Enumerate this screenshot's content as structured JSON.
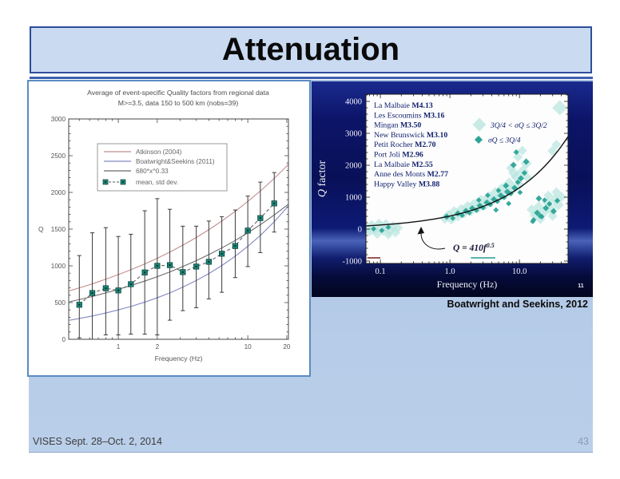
{
  "slide": {
    "title": "Attenuation",
    "footer_left": "VISES Sept. 28–Oct. 2, 2014",
    "page_number": "43",
    "caption": "Boatwright and Seekins, 2012",
    "colors": {
      "title_box_bg": "#c9daf1",
      "title_box_border": "#2e4d9b",
      "underline": "#3c5fae",
      "content_bg": "#b2c9e6",
      "navy_panel": "#0a1160",
      "teal_dark": "#2ba496",
      "teal_light": "#b9e5df"
    }
  },
  "chart_data": [
    {
      "type": "line",
      "title": "Average of event-specific Quality factors from regional data",
      "subtitle": "M>=3.5, data 150 to 500 km (nobs=39)",
      "xlabel": "Frequency (Hz)",
      "ylabel": "Q",
      "xscale": "log",
      "xlim": [
        0.414,
        20.6
      ],
      "ylim": [
        0,
        3000
      ],
      "yticks": [
        0,
        500,
        1000,
        1500,
        2000,
        2500,
        3000
      ],
      "xticks": [
        1,
        2,
        10,
        20
      ],
      "xminor": [
        0.5,
        0.6,
        0.7,
        0.8,
        0.9,
        3,
        4,
        5,
        6,
        7,
        8,
        9
      ],
      "legend_position": "upper-left-inside",
      "grid": false,
      "x": [
        0.42,
        0.5,
        0.63,
        0.8,
        1,
        1.25,
        1.6,
        2,
        2.5,
        3.15,
        4,
        5,
        6.3,
        8,
        10,
        12.5,
        16,
        20.6
      ],
      "series": [
        {
          "name": "Atkinson (2004)",
          "color": "#c28e8e",
          "y": [
            661,
            700,
            755,
            818,
            880,
            947,
            1026,
            1103,
            1187,
            1281,
            1386,
            1492,
            1610,
            1742,
            1877,
            2019,
            2190,
            2380
          ]
        },
        {
          "name": "Boatwright&Seekins (2011)",
          "color": "#8389c2",
          "y": [
            259,
            283,
            317,
            358,
            400,
            447,
            506,
            566,
            632,
            710,
            800,
            894,
            1004,
            1131,
            1265,
            1414,
            1600,
            1815
          ]
        },
        {
          "name": "680*x^0.33",
          "color": "#6b6b6b",
          "y": [
            511,
            541,
            583,
            632,
            680,
            732,
            793,
            852,
            917,
            990,
            1071,
            1153,
            1244,
            1346,
            1450,
            1560,
            1692,
            1839
          ]
        }
      ],
      "mean_series": {
        "name": "mean, std dev.",
        "color": "#1d8a7c",
        "x": [
          0.5,
          0.63,
          0.8,
          1,
          1.25,
          1.6,
          2,
          2.5,
          3.15,
          4,
          5,
          6.3,
          8,
          10,
          12.5,
          16
        ],
        "y": [
          470,
          630,
          695,
          665,
          750,
          910,
          1000,
          1010,
          915,
          990,
          1055,
          1165,
          1270,
          1480,
          1650,
          1850
        ],
        "err_low": [
          20,
          0,
          60,
          60,
          70,
          70,
          60,
          260,
          390,
          430,
          550,
          640,
          840,
          990,
          1180,
          1460
        ],
        "err_high": [
          1140,
          1450,
          1520,
          1400,
          1430,
          1750,
          1915,
          1770,
          1540,
          1540,
          1610,
          1670,
          1760,
          1950,
          2140,
          2270
        ]
      }
    },
    {
      "type": "scatter",
      "xlabel": "Frequency  (Hz)",
      "ylabel": "Q factor",
      "xscale": "log",
      "xlim": [
        0.062,
        50
      ],
      "ylim": [
        -1075,
        4225
      ],
      "yticks": [
        -1000,
        0,
        1000,
        2000,
        3000,
        4000
      ],
      "xticks": [
        0.1,
        1,
        10
      ],
      "xtick_labels": [
        "0.1",
        "1.0",
        "10.0"
      ],
      "grid": false,
      "slide_number": "11",
      "events": [
        {
          "name": "La Malbaie",
          "mag": "M4.13"
        },
        {
          "name": "Les Escoumins",
          "mag": "M3.16"
        },
        {
          "name": "Mingan",
          "mag": "M3.50"
        },
        {
          "name": "New Brunswick",
          "mag": "M3.10"
        },
        {
          "name": "Petit Rocher",
          "mag": "M2.70"
        },
        {
          "name": "Port Joli",
          "mag": "M2.96"
        },
        {
          "name": "La Malbaie",
          "mag": "M2.55"
        },
        {
          "name": "Anne des Monts",
          "mag": "M2.77"
        },
        {
          "name": "Happy Valley",
          "mag": "M3.88"
        }
      ],
      "legend_symbols": [
        {
          "label": "3Q/4 < σQ ≤ 3Q/2",
          "style": "light"
        },
        {
          "label": "σQ ≤ 3Q/4",
          "style": "dark"
        }
      ],
      "curve": {
        "label_base": "Q = 410f",
        "label_exp": "0.5",
        "coef": 410,
        "power": 0.5
      },
      "baseline_segments": [
        {
          "f1": 0.065,
          "f2": 0.1,
          "q": -900,
          "color": "#7a1f1f"
        },
        {
          "f1": 2.0,
          "f2": 4.5,
          "q": -900,
          "color": "#2a9a8e"
        }
      ],
      "series": [
        {
          "name": "3Q/4 < σQ ≤ 3Q/2",
          "color": "#b9e5df",
          "points": [
            [
              0.063,
              20,
              6
            ],
            [
              0.07,
              -70,
              6.5
            ],
            [
              0.075,
              110,
              7
            ],
            [
              0.082,
              -20,
              6
            ],
            [
              0.09,
              -140,
              6.5
            ],
            [
              0.1,
              60,
              7.5
            ],
            [
              0.11,
              -60,
              6
            ],
            [
              0.12,
              150,
              6.5
            ],
            [
              0.135,
              -30,
              7
            ],
            [
              0.15,
              90,
              6.5
            ],
            [
              0.165,
              -110,
              6
            ],
            [
              0.18,
              40,
              6
            ],
            [
              0.095,
              190,
              5.5
            ],
            [
              0.13,
              -180,
              5.5
            ],
            [
              0.85,
              330,
              6.5
            ],
            [
              0.95,
              430,
              7
            ],
            [
              1.05,
              290,
              6
            ],
            [
              1.15,
              530,
              7.5
            ],
            [
              1.3,
              410,
              6.5
            ],
            [
              1.45,
              610,
              7
            ],
            [
              1.6,
              490,
              6
            ],
            [
              1.8,
              690,
              7.5
            ],
            [
              2.0,
              570,
              6.5
            ],
            [
              2.2,
              770,
              7
            ],
            [
              2.5,
              650,
              6.5
            ],
            [
              2.8,
              890,
              7.5
            ],
            [
              3.2,
              750,
              6.5
            ],
            [
              3.6,
              1010,
              7
            ],
            [
              4.0,
              870,
              6.5
            ],
            [
              4.5,
              1130,
              7.5
            ],
            [
              5.0,
              970,
              6.5
            ],
            [
              5.6,
              1270,
              7
            ],
            [
              6.3,
              1090,
              6.5
            ],
            [
              7.1,
              1430,
              7.5
            ],
            [
              8.0,
              1230,
              6.5
            ],
            [
              9.0,
              1630,
              7
            ],
            [
              10,
              1390,
              6.5
            ],
            [
              11.2,
              1810,
              7.5
            ],
            [
              12.5,
              2060,
              7
            ],
            [
              9.5,
              2260,
              6
            ],
            [
              11,
              2460,
              6
            ],
            [
              7.5,
              1910,
              6
            ],
            [
              13,
              1610,
              6
            ],
            [
              8.3,
              1750,
              7
            ],
            [
              15,
              610,
              6.5
            ],
            [
              17,
              430,
              7
            ],
            [
              19,
              710,
              6.5
            ],
            [
              22,
              530,
              7.5
            ],
            [
              25,
              830,
              6.5
            ],
            [
              28,
              630,
              7
            ],
            [
              32,
              930,
              6.5
            ],
            [
              36,
              760,
              7
            ],
            [
              40,
              1010,
              6.5
            ],
            [
              20,
              310,
              6
            ],
            [
              30,
              410,
              6
            ],
            [
              26,
              1060,
              6
            ],
            [
              34,
              1160,
              6
            ],
            [
              38,
              3800,
              9.5
            ],
            [
              30,
              2450,
              6.5
            ],
            [
              34,
              2650,
              6
            ]
          ]
        },
        {
          "name": "σQ ≤ 3Q/4",
          "color": "#2ba496",
          "points": [
            [
              0.08,
              10,
              3.4
            ],
            [
              0.105,
              -40,
              3.4
            ],
            [
              0.13,
              60,
              3.4
            ],
            [
              0.9,
              390,
              4
            ],
            [
              1.1,
              340,
              3.4
            ],
            [
              1.3,
              490,
              4
            ],
            [
              1.5,
              430,
              3.4
            ],
            [
              1.7,
              570,
              4
            ],
            [
              1.9,
              510,
              3.4
            ],
            [
              2.1,
              650,
              4
            ],
            [
              2.4,
              590,
              3.4
            ],
            [
              2.7,
              730,
              4
            ],
            [
              3.0,
              670,
              3.4
            ],
            [
              3.4,
              830,
              4
            ],
            [
              3.8,
              770,
              3.4
            ],
            [
              4.3,
              930,
              4
            ],
            [
              4.8,
              870,
              3.4
            ],
            [
              5.4,
              1050,
              4
            ],
            [
              6.0,
              990,
              3.4
            ],
            [
              6.7,
              1170,
              4
            ],
            [
              7.5,
              1110,
              3.4
            ],
            [
              8.5,
              1290,
              4
            ],
            [
              9.5,
              1470,
              3.6
            ],
            [
              10.5,
              1590,
              4
            ],
            [
              11.8,
              1760,
              3.6
            ],
            [
              6.4,
              1360,
              4
            ],
            [
              5.0,
              1210,
              3.4
            ],
            [
              3.5,
              1060,
              3.4
            ],
            [
              2.6,
              910,
              3.4
            ],
            [
              12.5,
              2110,
              4
            ],
            [
              9.0,
              2410,
              3.6
            ],
            [
              8.2,
              2010,
              4
            ],
            [
              10.2,
              1150,
              3.4
            ],
            [
              7.0,
              800,
              3.4
            ],
            [
              4.6,
              600,
              3.4
            ],
            [
              16,
              290,
              3.4
            ],
            [
              18,
              510,
              4
            ],
            [
              21,
              390,
              3.4
            ],
            [
              24,
              660,
              4
            ],
            [
              27,
              790,
              3.6
            ],
            [
              31,
              560,
              4
            ],
            [
              35,
              890,
              3.6
            ],
            [
              23,
              910,
              3.4
            ],
            [
              19,
              960,
              4
            ],
            [
              15.5,
              240,
              3.4
            ],
            [
              20,
              410,
              3.6
            ]
          ]
        }
      ]
    }
  ]
}
